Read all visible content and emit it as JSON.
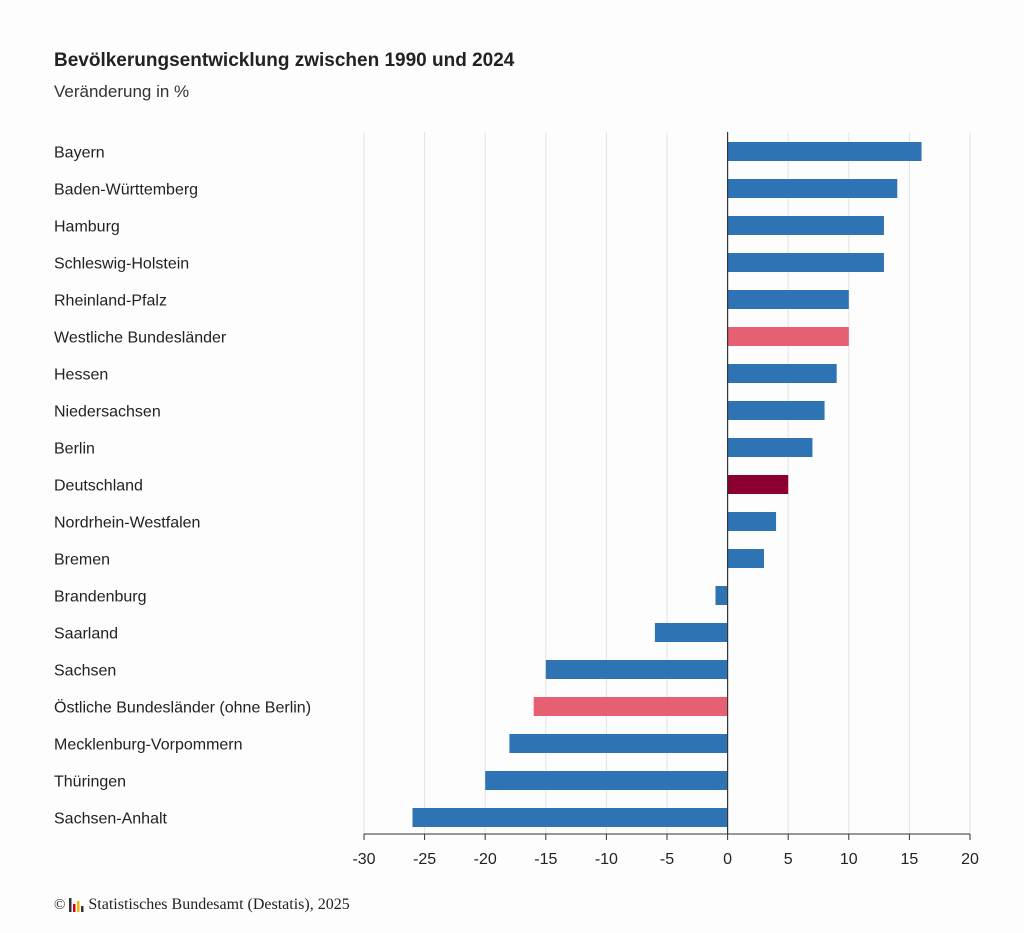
{
  "chart_data": {
    "type": "bar",
    "orientation": "horizontal",
    "title": "Bevölkerungsentwicklung zwischen 1990 und 2024",
    "subtitle": "Veränderung in %",
    "categories": [
      "Bayern",
      "Baden-Württemberg",
      "Hamburg",
      "Schleswig-Holstein",
      "Rheinland-Pfalz",
      "Westliche Bundesländer",
      "Hessen",
      "Niedersachsen",
      "Berlin",
      "Deutschland",
      "Nordrhein-Westfalen",
      "Bremen",
      "Brandenburg",
      "Saarland",
      "Sachsen",
      "Östliche Bundesländer (ohne Berlin)",
      "Mecklenburg-Vorpommern",
      "Thüringen",
      "Sachsen-Anhalt"
    ],
    "values": [
      16,
      14,
      12.9,
      12.9,
      10,
      10,
      9,
      8,
      7,
      5,
      4,
      3,
      -1,
      -6,
      -15,
      -16,
      -18,
      -20,
      -26
    ],
    "bar_colors": [
      "#2e74b5",
      "#2e74b5",
      "#2e74b5",
      "#2e74b5",
      "#2e74b5",
      "#e65f73",
      "#2e74b5",
      "#2e74b5",
      "#2e74b5",
      "#8b0030",
      "#2e74b5",
      "#2e74b5",
      "#2e74b5",
      "#2e74b5",
      "#2e74b5",
      "#e65f73",
      "#2e74b5",
      "#2e74b5",
      "#2e74b5"
    ],
    "xlim": [
      -30,
      20
    ],
    "xticks": [
      "-30",
      "-25",
      "-20",
      "-15",
      "-10",
      "-5",
      "0",
      "5",
      "10",
      "15",
      "20"
    ],
    "grid": true,
    "legend": "none"
  },
  "source": {
    "copyright": "©",
    "text": "Statistisches Bundesamt (Destatis), 2025"
  }
}
